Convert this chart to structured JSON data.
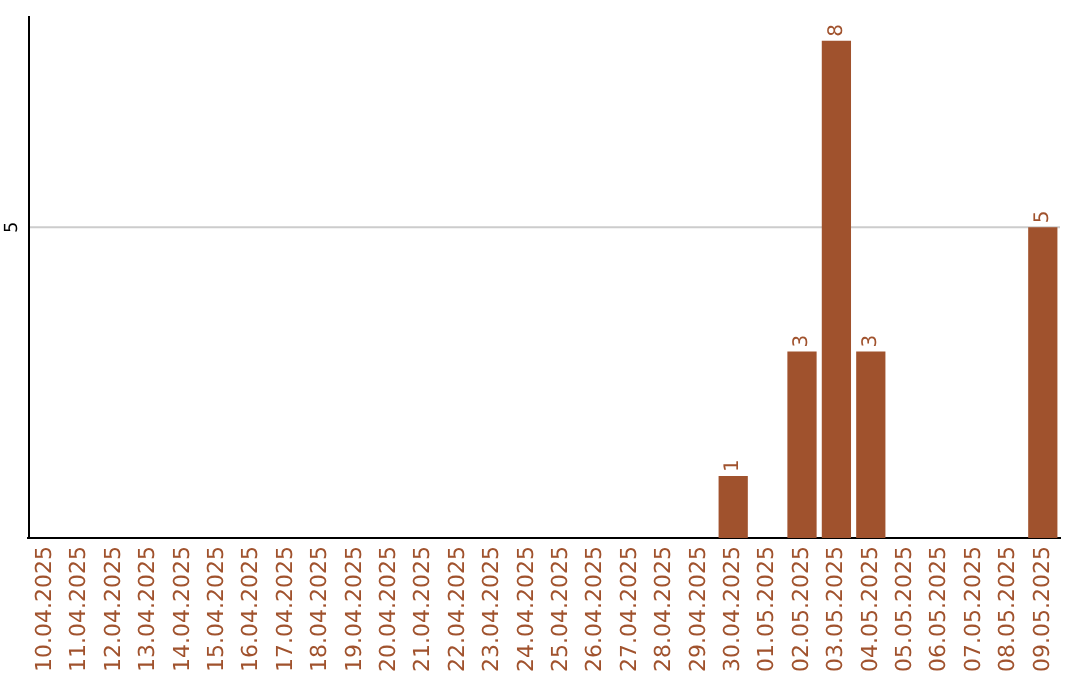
{
  "chart_data": {
    "type": "bar",
    "ylim": [
      0,
      8.4
    ],
    "categories": [
      "10.04.2025",
      "11.04.2025",
      "12.04.2025",
      "13.04.2025",
      "14.04.2025",
      "15.04.2025",
      "16.04.2025",
      "17.04.2025",
      "18.04.2025",
      "19.04.2025",
      "20.04.2025",
      "21.04.2025",
      "22.04.2025",
      "23.04.2025",
      "24.04.2025",
      "25.04.2025",
      "26.04.2025",
      "27.04.2025",
      "28.04.2025",
      "29.04.2025",
      "30.04.2025",
      "01.05.2025",
      "02.05.2025",
      "03.05.2025",
      "04.05.2025",
      "05.05.2025",
      "06.05.2025",
      "07.05.2025",
      "08.05.2025",
      "09.05.2025"
    ],
    "values": [
      null,
      null,
      null,
      null,
      null,
      null,
      null,
      null,
      null,
      null,
      null,
      null,
      null,
      null,
      null,
      null,
      null,
      null,
      null,
      null,
      1,
      null,
      3,
      8,
      3,
      null,
      null,
      null,
      null,
      5
    ],
    "value_labels": [
      null,
      null,
      null,
      null,
      null,
      null,
      null,
      null,
      null,
      null,
      null,
      null,
      null,
      null,
      null,
      null,
      null,
      null,
      null,
      null,
      "1",
      null,
      "3",
      "8",
      "3",
      null,
      null,
      null,
      null,
      "5"
    ],
    "color": "#a0522d",
    "ref_lines": [
      {
        "axis": "y",
        "value": 5,
        "label": "5",
        "color": "#cccccc"
      }
    ],
    "legend": false
  }
}
